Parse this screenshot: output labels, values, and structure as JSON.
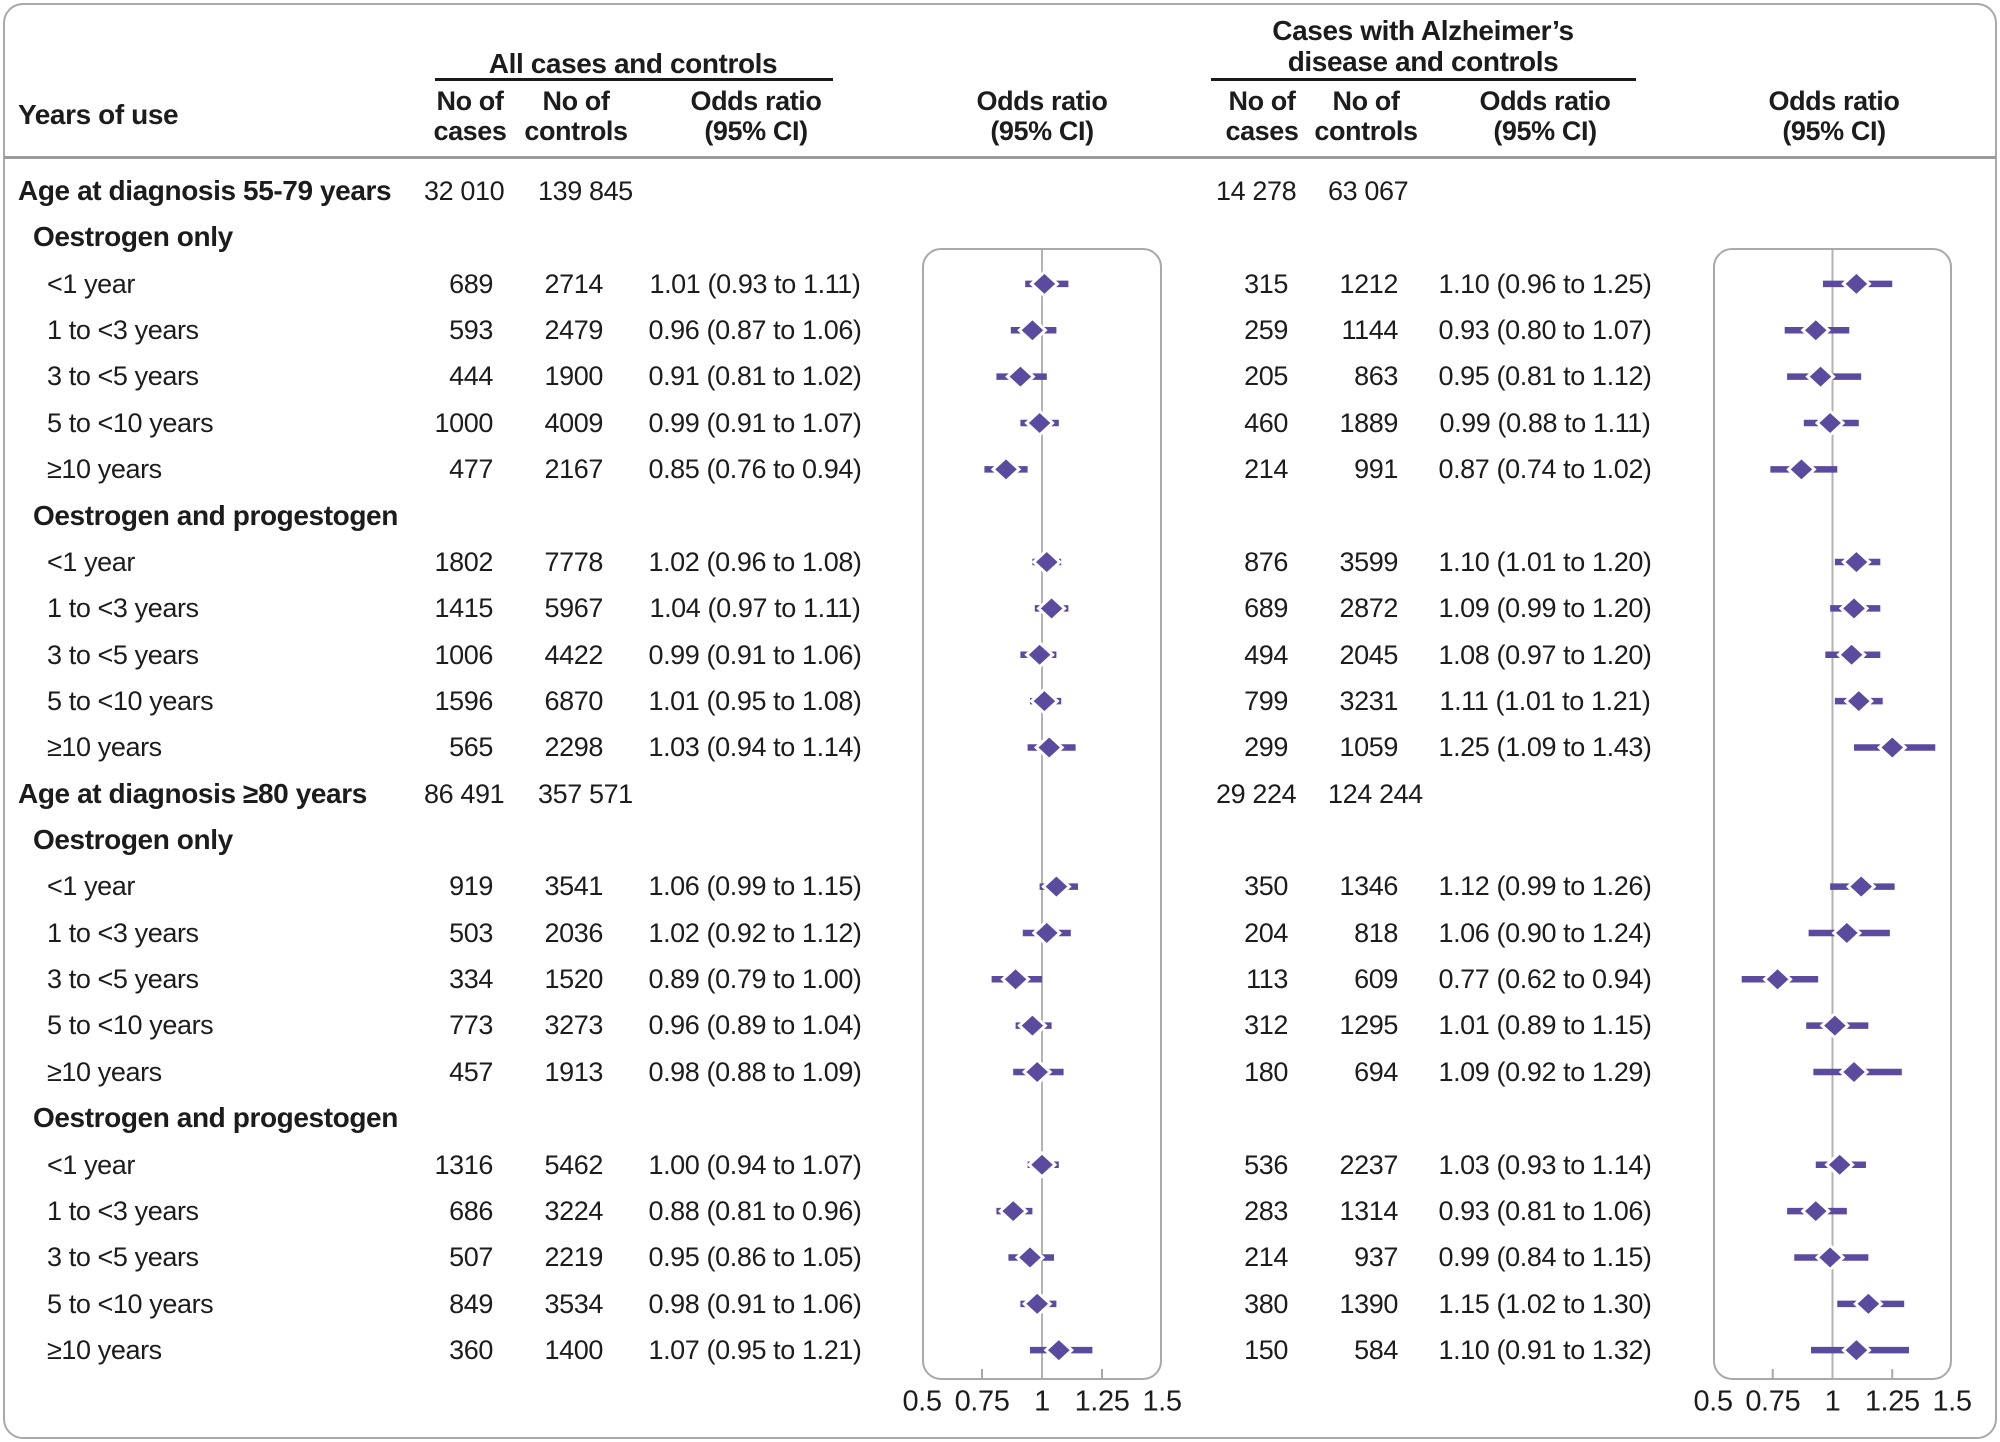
{
  "header": {
    "years_of_use": "Years of use",
    "left_panel_title": "All cases and controls",
    "right_panel_title_line1": "Cases with Alzheimer’s",
    "right_panel_title_line2": "disease and controls",
    "col_no_of": "No of",
    "col_cases": "cases",
    "col_controls": "controls",
    "col_odds_ratio": "Odds ratio",
    "col_ci": "(95% CI)"
  },
  "colors": {
    "diamond": "#5b4b9e",
    "ci_line": "#5b4b9e",
    "frame": "#a9a9a9",
    "ref_line": "#b3b3b3",
    "rule": "#9b9b9b",
    "underline": "#1a1a1a",
    "text": "#1c1c1c"
  },
  "chart_data": {
    "type": "forest",
    "panels": [
      {
        "key": "all",
        "title": "All cases and controls"
      },
      {
        "key": "alz",
        "title": "Cases with Alzheimer’s disease and controls"
      }
    ],
    "axis": {
      "min": 0.5,
      "max": 1.5,
      "reference": 1,
      "tick_values": [
        0.5,
        0.75,
        1,
        1.25,
        1.5
      ],
      "tick_labels": [
        "0.5",
        "0.75",
        "1",
        "1.25",
        "1.5"
      ]
    },
    "rows": [
      {
        "type": "section",
        "label": "Age at diagnosis 55-79 years",
        "all": {
          "cases": "32 010",
          "controls": "139 845"
        },
        "alz": {
          "cases": "14 278",
          "controls": "63 067"
        }
      },
      {
        "type": "subgroup",
        "label": "Oestrogen only"
      },
      {
        "type": "item",
        "label": "<1 year",
        "all": {
          "cases": "689",
          "controls": "2714",
          "or_text": "1.01 (0.93 to 1.11)",
          "or": 1.01,
          "lo": 0.93,
          "hi": 1.11
        },
        "alz": {
          "cases": "315",
          "controls": "1212",
          "or_text": "1.10 (0.96 to 1.25)",
          "or": 1.1,
          "lo": 0.96,
          "hi": 1.25
        }
      },
      {
        "type": "item",
        "label": "1 to <3 years",
        "all": {
          "cases": "593",
          "controls": "2479",
          "or_text": "0.96 (0.87 to 1.06)",
          "or": 0.96,
          "lo": 0.87,
          "hi": 1.06
        },
        "alz": {
          "cases": "259",
          "controls": "1144",
          "or_text": "0.93 (0.80 to 1.07)",
          "or": 0.93,
          "lo": 0.8,
          "hi": 1.07
        }
      },
      {
        "type": "item",
        "label": "3 to <5 years",
        "all": {
          "cases": "444",
          "controls": "1900",
          "or_text": "0.91 (0.81 to 1.02)",
          "or": 0.91,
          "lo": 0.81,
          "hi": 1.02
        },
        "alz": {
          "cases": "205",
          "controls": "863",
          "or_text": "0.95 (0.81 to 1.12)",
          "or": 0.95,
          "lo": 0.81,
          "hi": 1.12
        }
      },
      {
        "type": "item",
        "label": "5 to <10 years",
        "all": {
          "cases": "1000",
          "controls": "4009",
          "or_text": "0.99 (0.91 to 1.07)",
          "or": 0.99,
          "lo": 0.91,
          "hi": 1.07
        },
        "alz": {
          "cases": "460",
          "controls": "1889",
          "or_text": "0.99 (0.88 to 1.11)",
          "or": 0.99,
          "lo": 0.88,
          "hi": 1.11
        }
      },
      {
        "type": "item",
        "label": "≥10 years",
        "all": {
          "cases": "477",
          "controls": "2167",
          "or_text": "0.85 (0.76 to 0.94)",
          "or": 0.85,
          "lo": 0.76,
          "hi": 0.94
        },
        "alz": {
          "cases": "214",
          "controls": "991",
          "or_text": "0.87 (0.74 to 1.02)",
          "or": 0.87,
          "lo": 0.74,
          "hi": 1.02
        }
      },
      {
        "type": "subgroup",
        "label": "Oestrogen and progestogen"
      },
      {
        "type": "item",
        "label": "<1 year",
        "all": {
          "cases": "1802",
          "controls": "7778",
          "or_text": "1.02 (0.96 to 1.08)",
          "or": 1.02,
          "lo": 0.96,
          "hi": 1.08
        },
        "alz": {
          "cases": "876",
          "controls": "3599",
          "or_text": "1.10 (1.01 to 1.20)",
          "or": 1.1,
          "lo": 1.01,
          "hi": 1.2
        }
      },
      {
        "type": "item",
        "label": "1 to <3 years",
        "all": {
          "cases": "1415",
          "controls": "5967",
          "or_text": "1.04 (0.97 to 1.11)",
          "or": 1.04,
          "lo": 0.97,
          "hi": 1.11
        },
        "alz": {
          "cases": "689",
          "controls": "2872",
          "or_text": "1.09 (0.99 to 1.20)",
          "or": 1.09,
          "lo": 0.99,
          "hi": 1.2
        }
      },
      {
        "type": "item",
        "label": "3 to <5 years",
        "all": {
          "cases": "1006",
          "controls": "4422",
          "or_text": "0.99 (0.91 to 1.06)",
          "or": 0.99,
          "lo": 0.91,
          "hi": 1.06
        },
        "alz": {
          "cases": "494",
          "controls": "2045",
          "or_text": "1.08 (0.97 to 1.20)",
          "or": 1.08,
          "lo": 0.97,
          "hi": 1.2
        }
      },
      {
        "type": "item",
        "label": "5 to <10 years",
        "all": {
          "cases": "1596",
          "controls": "6870",
          "or_text": "1.01 (0.95 to 1.08)",
          "or": 1.01,
          "lo": 0.95,
          "hi": 1.08
        },
        "alz": {
          "cases": "799",
          "controls": "3231",
          "or_text": "1.11 (1.01 to 1.21)",
          "or": 1.11,
          "lo": 1.01,
          "hi": 1.21
        }
      },
      {
        "type": "item",
        "label": "≥10 years",
        "all": {
          "cases": "565",
          "controls": "2298",
          "or_text": "1.03 (0.94 to 1.14)",
          "or": 1.03,
          "lo": 0.94,
          "hi": 1.14
        },
        "alz": {
          "cases": "299",
          "controls": "1059",
          "or_text": "1.25 (1.09 to 1.43)",
          "or": 1.25,
          "lo": 1.09,
          "hi": 1.43
        }
      },
      {
        "type": "section",
        "label": "Age at diagnosis ≥80 years",
        "all": {
          "cases": "86 491",
          "controls": "357 571"
        },
        "alz": {
          "cases": "29 224",
          "controls": "124 244"
        }
      },
      {
        "type": "subgroup",
        "label": "Oestrogen only"
      },
      {
        "type": "item",
        "label": "<1 year",
        "all": {
          "cases": "919",
          "controls": "3541",
          "or_text": "1.06 (0.99 to 1.15)",
          "or": 1.06,
          "lo": 0.99,
          "hi": 1.15
        },
        "alz": {
          "cases": "350",
          "controls": "1346",
          "or_text": "1.12 (0.99 to 1.26)",
          "or": 1.12,
          "lo": 0.99,
          "hi": 1.26
        }
      },
      {
        "type": "item",
        "label": "1 to <3 years",
        "all": {
          "cases": "503",
          "controls": "2036",
          "or_text": "1.02 (0.92 to 1.12)",
          "or": 1.02,
          "lo": 0.92,
          "hi": 1.12
        },
        "alz": {
          "cases": "204",
          "controls": "818",
          "or_text": "1.06 (0.90 to 1.24)",
          "or": 1.06,
          "lo": 0.9,
          "hi": 1.24
        }
      },
      {
        "type": "item",
        "label": "3 to <5 years",
        "all": {
          "cases": "334",
          "controls": "1520",
          "or_text": "0.89 (0.79 to 1.00)",
          "or": 0.89,
          "lo": 0.79,
          "hi": 1.0
        },
        "alz": {
          "cases": "113",
          "controls": "609",
          "or_text": "0.77 (0.62 to 0.94)",
          "or": 0.77,
          "lo": 0.62,
          "hi": 0.94
        }
      },
      {
        "type": "item",
        "label": "5 to <10 years",
        "all": {
          "cases": "773",
          "controls": "3273",
          "or_text": "0.96 (0.89 to 1.04)",
          "or": 0.96,
          "lo": 0.89,
          "hi": 1.04
        },
        "alz": {
          "cases": "312",
          "controls": "1295",
          "or_text": "1.01 (0.89 to 1.15)",
          "or": 1.01,
          "lo": 0.89,
          "hi": 1.15
        }
      },
      {
        "type": "item",
        "label": "≥10 years",
        "all": {
          "cases": "457",
          "controls": "1913",
          "or_text": "0.98 (0.88 to 1.09)",
          "or": 0.98,
          "lo": 0.88,
          "hi": 1.09
        },
        "alz": {
          "cases": "180",
          "controls": "694",
          "or_text": "1.09 (0.92 to 1.29)",
          "or": 1.09,
          "lo": 0.92,
          "hi": 1.29
        }
      },
      {
        "type": "subgroup",
        "label": "Oestrogen and progestogen"
      },
      {
        "type": "item",
        "label": "<1 year",
        "all": {
          "cases": "1316",
          "controls": "5462",
          "or_text": "1.00 (0.94 to 1.07)",
          "or": 1.0,
          "lo": 0.94,
          "hi": 1.07
        },
        "alz": {
          "cases": "536",
          "controls": "2237",
          "or_text": "1.03 (0.93 to 1.14)",
          "or": 1.03,
          "lo": 0.93,
          "hi": 1.14
        }
      },
      {
        "type": "item",
        "label": "1 to <3 years",
        "all": {
          "cases": "686",
          "controls": "3224",
          "or_text": "0.88 (0.81 to 0.96)",
          "or": 0.88,
          "lo": 0.81,
          "hi": 0.96
        },
        "alz": {
          "cases": "283",
          "controls": "1314",
          "or_text": "0.93 (0.81 to 1.06)",
          "or": 0.93,
          "lo": 0.81,
          "hi": 1.06
        }
      },
      {
        "type": "item",
        "label": "3 to <5 years",
        "all": {
          "cases": "507",
          "controls": "2219",
          "or_text": "0.95 (0.86 to 1.05)",
          "or": 0.95,
          "lo": 0.86,
          "hi": 1.05
        },
        "alz": {
          "cases": "214",
          "controls": "937",
          "or_text": "0.99 (0.84 to 1.15)",
          "or": 0.99,
          "lo": 0.84,
          "hi": 1.15
        }
      },
      {
        "type": "item",
        "label": "5 to <10 years",
        "all": {
          "cases": "849",
          "controls": "3534",
          "or_text": "0.98 (0.91 to 1.06)",
          "or": 0.98,
          "lo": 0.91,
          "hi": 1.06
        },
        "alz": {
          "cases": "380",
          "controls": "1390",
          "or_text": "1.15 (1.02 to 1.30)",
          "or": 1.15,
          "lo": 1.02,
          "hi": 1.3
        }
      },
      {
        "type": "item",
        "label": "≥10 years",
        "all": {
          "cases": "360",
          "controls": "1400",
          "or_text": "1.07 (0.95 to 1.21)",
          "or": 1.07,
          "lo": 0.95,
          "hi": 1.21
        },
        "alz": {
          "cases": "150",
          "controls": "584",
          "or_text": "1.10 (0.91 to 1.32)",
          "or": 1.1,
          "lo": 0.91,
          "hi": 1.32
        }
      }
    ]
  }
}
